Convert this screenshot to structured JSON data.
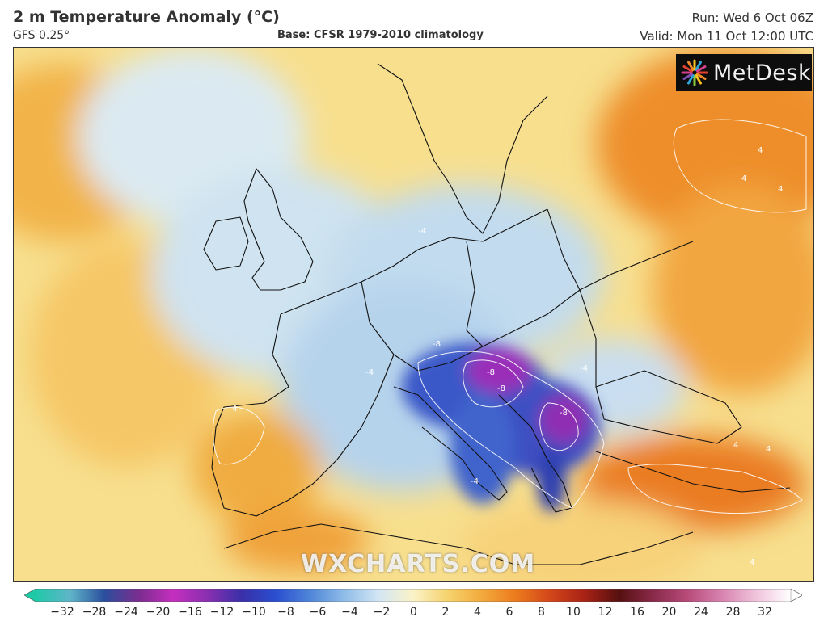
{
  "header": {
    "title": "2 m Temperature Anomaly (°C)",
    "model": "GFS 0.25°",
    "base": "Base: CFSR 1979-2010 climatology",
    "run": "Run: Wed 6 Oct 06Z",
    "valid": "Valid: Mon 11 Oct 12:00 UTC"
  },
  "branding": {
    "logo_text": "MetDesk",
    "logo_icon": "metdesk-starburst-icon",
    "watermark": "WXCHARTS.COM"
  },
  "map": {
    "region": "Europe",
    "contour_labels": [
      {
        "text": "4"
      },
      {
        "text": "4"
      },
      {
        "text": "4"
      },
      {
        "text": "-4"
      },
      {
        "text": "-4"
      },
      {
        "text": "-8"
      },
      {
        "text": "-8"
      },
      {
        "text": "-8"
      },
      {
        "text": "-8"
      },
      {
        "text": "-4"
      },
      {
        "text": "-4"
      },
      {
        "text": "4"
      },
      {
        "text": "4"
      },
      {
        "text": "4"
      },
      {
        "text": "4"
      }
    ]
  },
  "colorbar": {
    "ticks": [
      "−32",
      "−28",
      "−24",
      "−20",
      "−16",
      "−12",
      "−10",
      "−8",
      "−6",
      "−4",
      "−2",
      "0",
      "2",
      "4",
      "6",
      "8",
      "10",
      "12",
      "16",
      "20",
      "24",
      "28",
      "32"
    ],
    "colors": [
      "#1fc9a8",
      "#5fb5c9",
      "#2b4f9e",
      "#7a2d8f",
      "#c42fbf",
      "#8a2fb0",
      "#3a2fa8",
      "#2a4fd0",
      "#4f86d8",
      "#8fbde8",
      "#d3e6f4",
      "#fbf3c8",
      "#f6d36e",
      "#f2aa3c",
      "#ec7a1c",
      "#d2461a",
      "#a82216",
      "#561010",
      "#8a2a4a",
      "#b84b7a",
      "#d884b0",
      "#f0c4dc",
      "#ffffff"
    ]
  }
}
